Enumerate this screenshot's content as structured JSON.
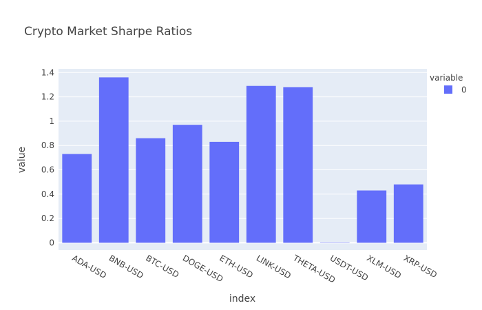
{
  "chart_data": {
    "type": "bar",
    "title": "Crypto Market Sharpe Ratios",
    "xlabel": "index",
    "ylabel": "value",
    "categories": [
      "ADA-USD",
      "BNB-USD",
      "BTC-USD",
      "DOGE-USD",
      "ETH-USD",
      "LINK-USD",
      "THETA-USD",
      "USDT-USD",
      "XLM-USD",
      "XRP-USD"
    ],
    "series": [
      {
        "name": "0",
        "values": [
          0.73,
          1.36,
          0.86,
          0.97,
          0.83,
          1.29,
          1.28,
          0.002,
          0.43,
          0.48
        ],
        "color": "#636efa"
      }
    ],
    "ylim": [
      -0.06,
      1.43
    ],
    "yticks": [
      0,
      0.2,
      0.4,
      0.6,
      0.8,
      1,
      1.2,
      1.4
    ],
    "ytick_labels": [
      "0",
      "0.2",
      "0.4",
      "0.6",
      "0.8",
      "1",
      "1.2",
      "1.4"
    ],
    "grid": true,
    "legend": {
      "title": "variable",
      "placement": "top-right"
    },
    "plot_bgcolor": "#e5ecf6",
    "gridcolor": "#ffffff"
  }
}
